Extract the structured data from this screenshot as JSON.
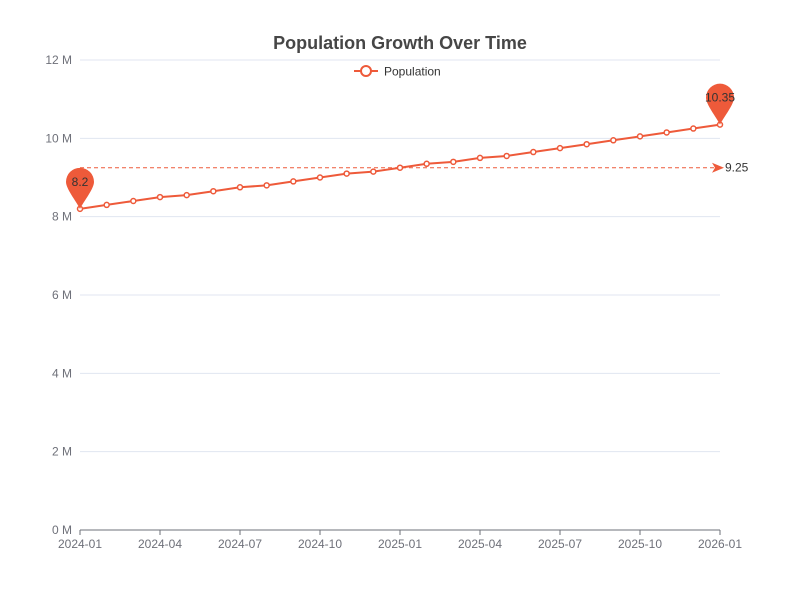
{
  "chart_data": {
    "type": "line",
    "title": "Population Growth Over Time",
    "xlabel": "",
    "ylabel": "",
    "x_axis": {
      "type": "date",
      "range": [
        "2024-01",
        "2026-01"
      ],
      "tick_labels": [
        "2024-01",
        "2024-04",
        "2024-07",
        "2024-10",
        "2025-01",
        "2025-04",
        "2025-07",
        "2025-10",
        "2026-01"
      ]
    },
    "y_axis": {
      "range": [
        0,
        12000000
      ],
      "tick_values": [
        0,
        2000000,
        4000000,
        6000000,
        8000000,
        10000000,
        12000000
      ],
      "tick_labels": [
        "0 M",
        "2 M",
        "4 M",
        "6 M",
        "8 M",
        "10 M",
        "12 M"
      ]
    },
    "grid": "horizontal",
    "legend": {
      "position": "top-center",
      "entries": [
        "Population"
      ]
    },
    "series": [
      {
        "name": "Population",
        "color": "#ee5a3a",
        "x": [
          "2024-01",
          "2024-02",
          "2024-03",
          "2024-04",
          "2024-05",
          "2024-06",
          "2024-07",
          "2024-08",
          "2024-09",
          "2024-10",
          "2024-11",
          "2024-12",
          "2025-01",
          "2025-02",
          "2025-03",
          "2025-04",
          "2025-05",
          "2025-06",
          "2025-07",
          "2025-08",
          "2025-09",
          "2025-10",
          "2025-11",
          "2025-12",
          "2026-01"
        ],
        "values": [
          8200000,
          8300000,
          8400000,
          8500000,
          8550000,
          8650000,
          8750000,
          8800000,
          8900000,
          9000000,
          9100000,
          9150000,
          9250000,
          9350000,
          9400000,
          9500000,
          9550000,
          9650000,
          9750000,
          9850000,
          9950000,
          10050000,
          10150000,
          10250000,
          10350000
        ]
      }
    ],
    "annotations": {
      "min_pin": {
        "x": "2024-01",
        "value": 8200000,
        "label": "8.2"
      },
      "max_pin": {
        "x": "2026-01",
        "value": 10350000,
        "label": "10.35"
      },
      "average_line": {
        "value": 9250000,
        "label": "9.25"
      }
    }
  }
}
